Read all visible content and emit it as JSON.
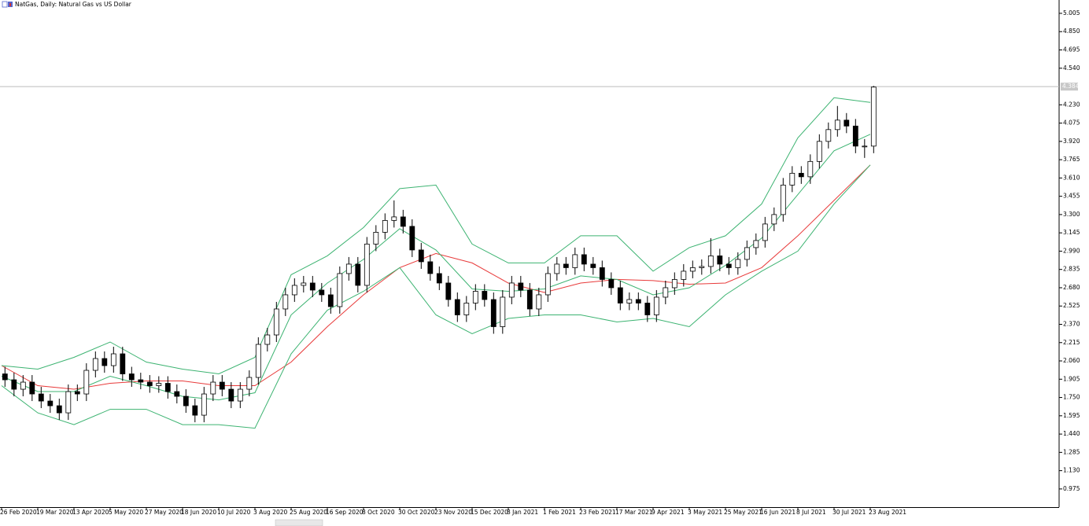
{
  "chart_data": {
    "type": "candlestick",
    "title": "NatGas, Daily:  Natural Gas vs US Dollar",
    "categories": [
      "26 Feb 2020",
      "19 Mar 2020",
      "13 Apr 2020",
      "5 May 2020",
      "27 May 2020",
      "18 Jun 2020",
      "10 Jul 2020",
      "3 Aug 2020",
      "25 Aug 2020",
      "16 Sep 2020",
      "8 Oct 2020",
      "30 Oct 2020",
      "23 Nov 2020",
      "15 Dec 2020",
      "8 Jan 2021",
      "1 Feb 2021",
      "23 Feb 2021",
      "17 Mar 2021",
      "9 Apr 2021",
      "3 May 2021",
      "25 May 2021",
      "16 Jun 2021",
      "8 Jul 2021",
      "30 Jul 2021",
      "23 Aug 2021"
    ],
    "candles": {
      "open": [
        1.95,
        1.9,
        1.82,
        1.88,
        1.78,
        1.72,
        1.68,
        1.62,
        1.8,
        1.78,
        1.98,
        2.08,
        2.02,
        2.12,
        1.95,
        1.9,
        1.88,
        1.85,
        1.87,
        1.8,
        1.76,
        1.68,
        1.6,
        1.78,
        1.88,
        1.82,
        1.72,
        1.82,
        1.92,
        2.2,
        2.28,
        2.5,
        2.62,
        2.7,
        2.72,
        2.66,
        2.62,
        2.52,
        2.8,
        2.88,
        2.7,
        3.05,
        3.15,
        3.25,
        3.28,
        3.2,
        3.0,
        2.9,
        2.8,
        2.72,
        2.58,
        2.45,
        2.55,
        2.65,
        2.58,
        2.35,
        2.6,
        2.72,
        2.66,
        2.5,
        2.62,
        2.8,
        2.88,
        2.85,
        2.96,
        2.88,
        2.85,
        2.75,
        2.68,
        2.55,
        2.58,
        2.55,
        2.45,
        2.6,
        2.68,
        2.75,
        2.82,
        2.85,
        2.86,
        2.95,
        2.88,
        2.85,
        2.92,
        3.02,
        3.08,
        3.22,
        3.3,
        3.55,
        3.65,
        3.62,
        3.75,
        3.92,
        4.02,
        4.1,
        4.05,
        3.88,
        3.88
      ],
      "high": [
        2.01,
        1.96,
        1.94,
        1.94,
        1.84,
        1.78,
        1.74,
        1.86,
        1.86,
        2.04,
        2.14,
        2.14,
        2.18,
        2.18,
        2.01,
        1.96,
        1.94,
        1.93,
        1.93,
        1.86,
        1.82,
        1.74,
        1.84,
        1.94,
        1.94,
        1.88,
        1.88,
        1.98,
        2.26,
        2.34,
        2.56,
        2.68,
        2.76,
        2.78,
        2.78,
        2.72,
        2.68,
        2.86,
        2.94,
        2.94,
        3.11,
        3.21,
        3.31,
        3.42,
        3.34,
        3.26,
        3.06,
        2.96,
        2.86,
        2.78,
        2.64,
        2.61,
        2.71,
        2.71,
        2.64,
        2.66,
        2.78,
        2.78,
        2.72,
        2.68,
        2.86,
        2.94,
        2.94,
        3.02,
        3.02,
        2.94,
        2.91,
        2.81,
        2.74,
        2.64,
        2.64,
        2.61,
        2.66,
        2.74,
        2.81,
        2.88,
        2.91,
        2.92,
        3.1,
        3.01,
        2.94,
        2.98,
        3.08,
        3.14,
        3.28,
        3.36,
        3.61,
        3.71,
        3.71,
        3.81,
        3.98,
        4.08,
        4.22,
        4.16,
        4.11,
        3.94,
        4.39
      ],
      "low": [
        1.84,
        1.76,
        1.76,
        1.72,
        1.66,
        1.62,
        1.56,
        1.56,
        1.72,
        1.72,
        1.92,
        1.96,
        1.96,
        1.89,
        1.84,
        1.82,
        1.79,
        1.79,
        1.74,
        1.7,
        1.62,
        1.54,
        1.54,
        1.72,
        1.76,
        1.66,
        1.66,
        1.76,
        1.86,
        2.14,
        2.22,
        2.44,
        2.56,
        2.64,
        2.6,
        2.56,
        2.46,
        2.46,
        2.74,
        2.64,
        2.64,
        2.99,
        3.09,
        3.19,
        3.14,
        2.94,
        2.84,
        2.74,
        2.66,
        2.52,
        2.39,
        2.39,
        2.49,
        2.52,
        2.29,
        2.29,
        2.54,
        2.6,
        2.44,
        2.44,
        2.56,
        2.74,
        2.79,
        2.79,
        2.82,
        2.79,
        2.69,
        2.62,
        2.49,
        2.49,
        2.49,
        2.39,
        2.39,
        2.54,
        2.62,
        2.69,
        2.76,
        2.79,
        2.8,
        2.82,
        2.79,
        2.79,
        2.86,
        2.96,
        3.02,
        3.16,
        3.24,
        3.49,
        3.56,
        3.56,
        3.69,
        3.86,
        3.96,
        3.99,
        3.82,
        3.78,
        3.82
      ],
      "close": [
        1.9,
        1.82,
        1.88,
        1.78,
        1.72,
        1.68,
        1.62,
        1.8,
        1.78,
        1.98,
        2.08,
        2.02,
        2.12,
        1.95,
        1.9,
        1.88,
        1.85,
        1.87,
        1.8,
        1.76,
        1.68,
        1.6,
        1.78,
        1.88,
        1.82,
        1.72,
        1.82,
        1.92,
        2.2,
        2.28,
        2.5,
        2.62,
        2.7,
        2.72,
        2.66,
        2.62,
        2.52,
        2.8,
        2.88,
        2.7,
        3.05,
        3.15,
        3.25,
        3.28,
        3.2,
        3.0,
        2.9,
        2.8,
        2.72,
        2.58,
        2.45,
        2.55,
        2.65,
        2.58,
        2.35,
        2.6,
        2.72,
        2.66,
        2.5,
        2.62,
        2.8,
        2.88,
        2.85,
        2.96,
        2.88,
        2.85,
        2.75,
        2.68,
        2.55,
        2.58,
        2.55,
        2.45,
        2.6,
        2.68,
        2.75,
        2.82,
        2.85,
        2.86,
        2.95,
        2.88,
        2.85,
        2.92,
        3.02,
        3.08,
        3.22,
        3.3,
        3.55,
        3.65,
        3.62,
        3.75,
        3.92,
        4.02,
        4.1,
        4.05,
        3.88,
        3.88,
        4.38
      ],
      "color": "#000000"
    },
    "series": [
      {
        "color": "#e83a3a",
        "values": [
          2.02,
          1.85,
          1.82,
          1.87,
          1.89,
          1.89,
          1.85,
          1.85,
          2.05,
          2.35,
          2.62,
          2.85,
          2.97,
          2.89,
          2.72,
          2.64,
          2.72,
          2.75,
          2.74,
          2.71,
          2.72,
          2.85,
          3.12,
          3.42,
          3.72
        ]
      },
      {
        "color": "#3cb371",
        "values": [
          2.02,
          1.99,
          2.09,
          2.22,
          2.05,
          1.99,
          1.95,
          2.09,
          2.79,
          2.95,
          3.19,
          3.52,
          3.55,
          3.05,
          2.89,
          2.89,
          3.12,
          3.12,
          2.82,
          3.02,
          3.12,
          3.39,
          3.95,
          4.29,
          4.25
        ]
      },
      {
        "color": "#3cb371",
        "values": [
          1.93,
          1.8,
          1.8,
          1.93,
          1.85,
          1.76,
          1.73,
          1.79,
          2.45,
          2.72,
          2.92,
          3.18,
          3.0,
          2.67,
          2.65,
          2.67,
          2.78,
          2.75,
          2.62,
          2.68,
          2.87,
          3.1,
          3.47,
          3.84,
          3.98
        ]
      },
      {
        "color": "#3cb371",
        "values": [
          1.85,
          1.62,
          1.52,
          1.65,
          1.65,
          1.52,
          1.52,
          1.49,
          2.12,
          2.49,
          2.65,
          2.85,
          2.45,
          2.29,
          2.42,
          2.45,
          2.45,
          2.39,
          2.42,
          2.35,
          2.62,
          2.82,
          2.99,
          3.39,
          3.72
        ]
      }
    ],
    "last_price": 4.384,
    "ylim": [
      0.821,
      5.118
    ],
    "yticks": [
      0.975,
      {
        "value": 1.13,
        "label": "1.130"
      },
      1.285,
      {
        "value": 1.44,
        "label": "1.440"
      },
      1.595,
      {
        "value": 1.75,
        "label": "1.750"
      },
      1.905,
      {
        "value": 2.06,
        "label": "2.060"
      },
      2.215,
      {
        "value": 2.37,
        "label": "2.370"
      },
      2.525,
      {
        "value": 2.68,
        "label": "2.680"
      },
      2.835,
      {
        "value": 2.99,
        "label": "2.990"
      },
      3.145,
      {
        "value": 3.3,
        "label": "3.300"
      },
      3.455,
      {
        "value": 3.61,
        "label": "3.610"
      },
      3.765,
      {
        "value": 3.92,
        "label": "3.920"
      },
      4.075,
      {
        "value": 4.23,
        "label": "4.230"
      },
      {
        "value": 4.54,
        "label": "4.540"
      },
      4.695,
      {
        "value": 4.85,
        "label": "4.850"
      },
      5.005
    ]
  }
}
